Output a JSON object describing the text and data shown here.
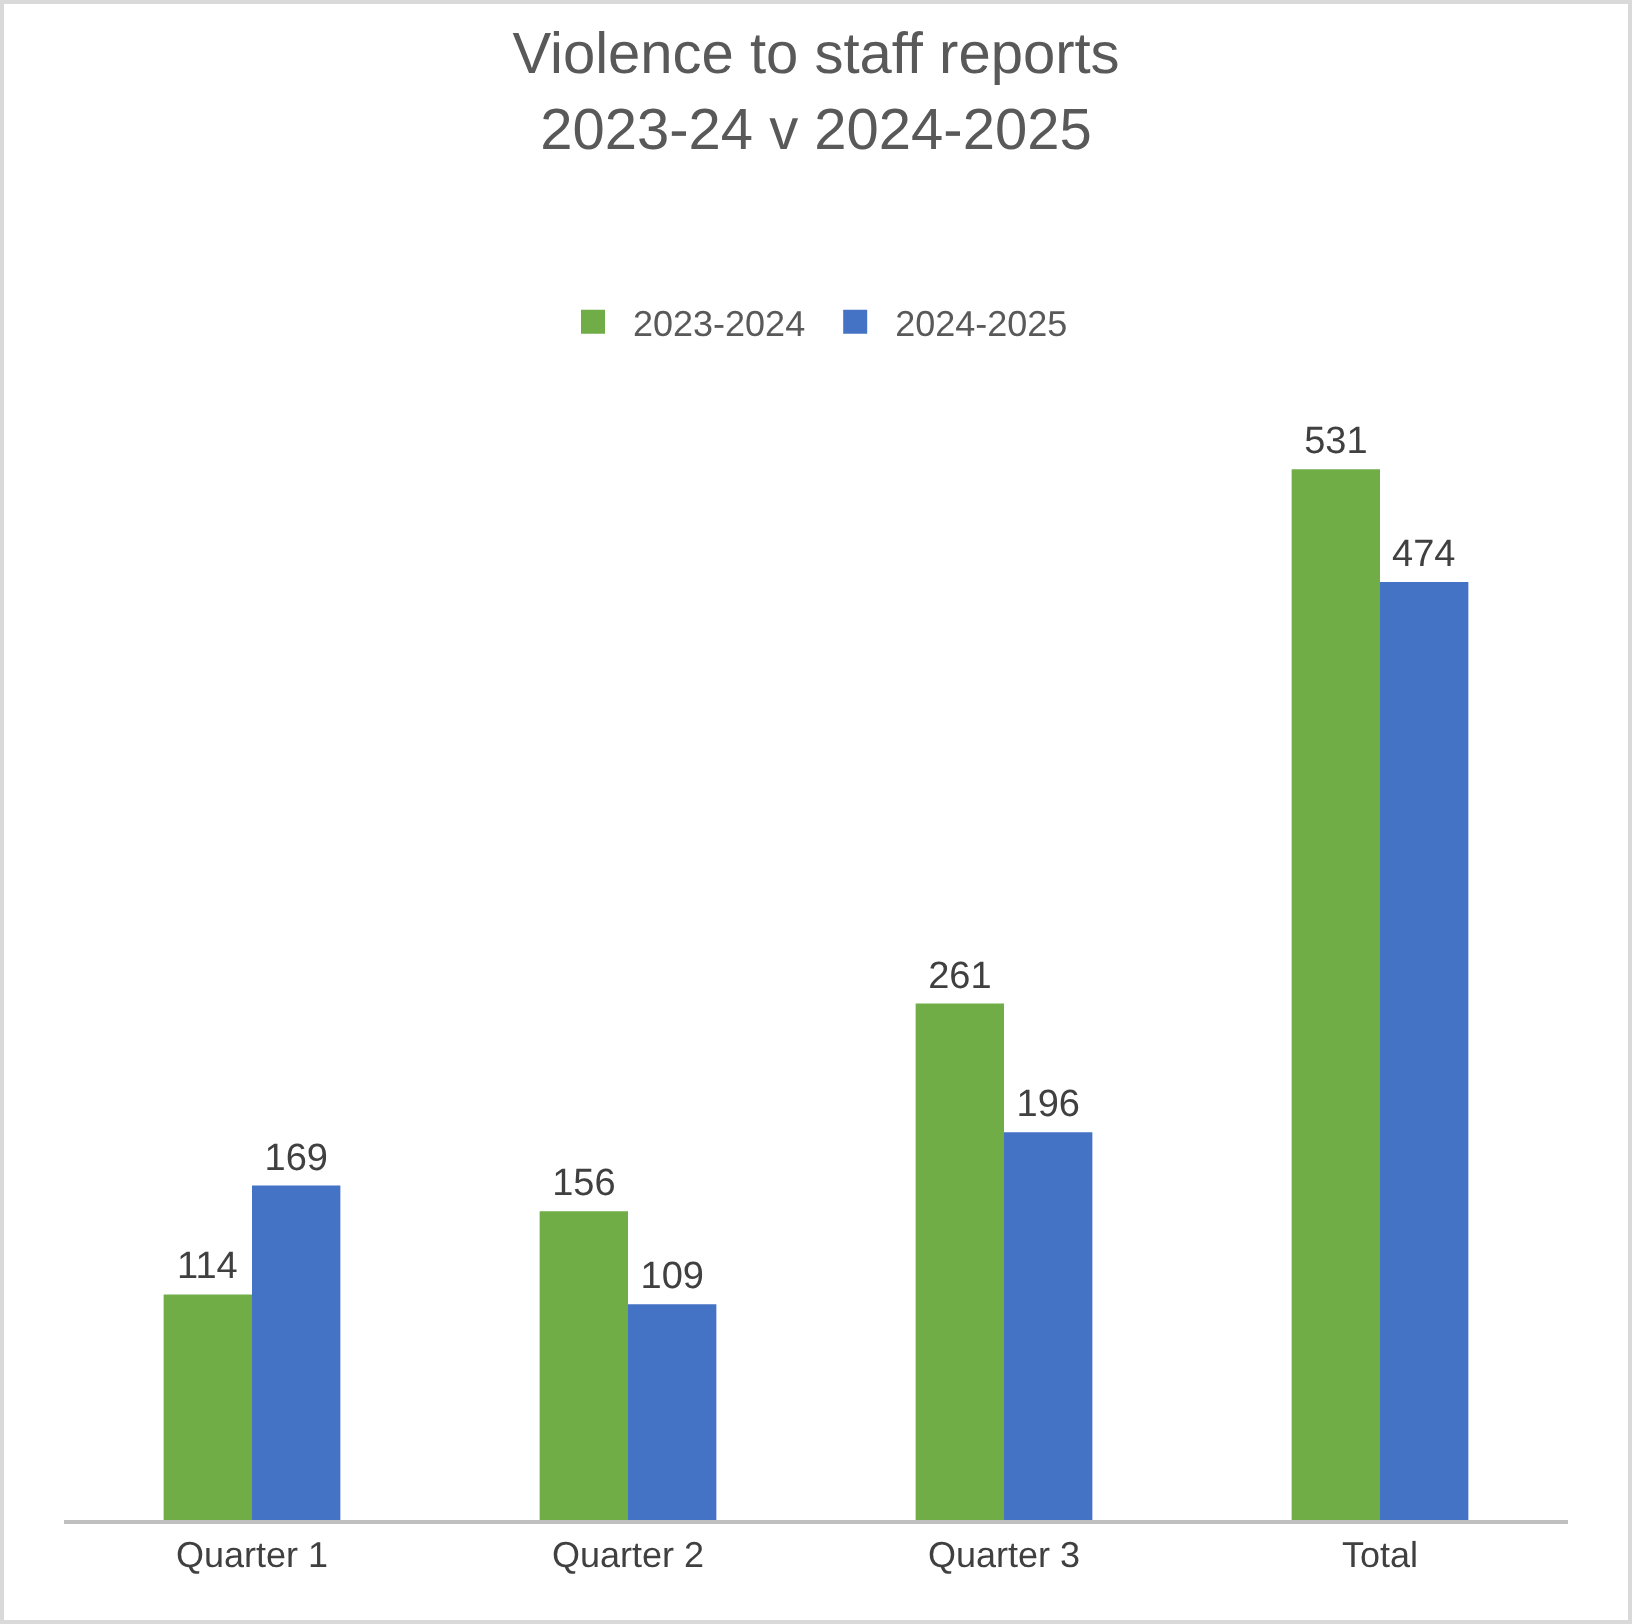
{
  "chart_data": {
    "type": "bar",
    "title": "Violence to staff reports\n2023-24 v 2024-2025",
    "categories": [
      "Quarter 1",
      "Quarter 2",
      "Quarter 3",
      "Total"
    ],
    "series": [
      {
        "name": "2023-2024",
        "color": "#70ad47",
        "values": [
          114,
          156,
          261,
          531
        ]
      },
      {
        "name": "2024-2025",
        "color": "#4472c4",
        "values": [
          169,
          109,
          196,
          474
        ]
      }
    ],
    "data_labels": true,
    "legend": "top",
    "grid": false
  }
}
